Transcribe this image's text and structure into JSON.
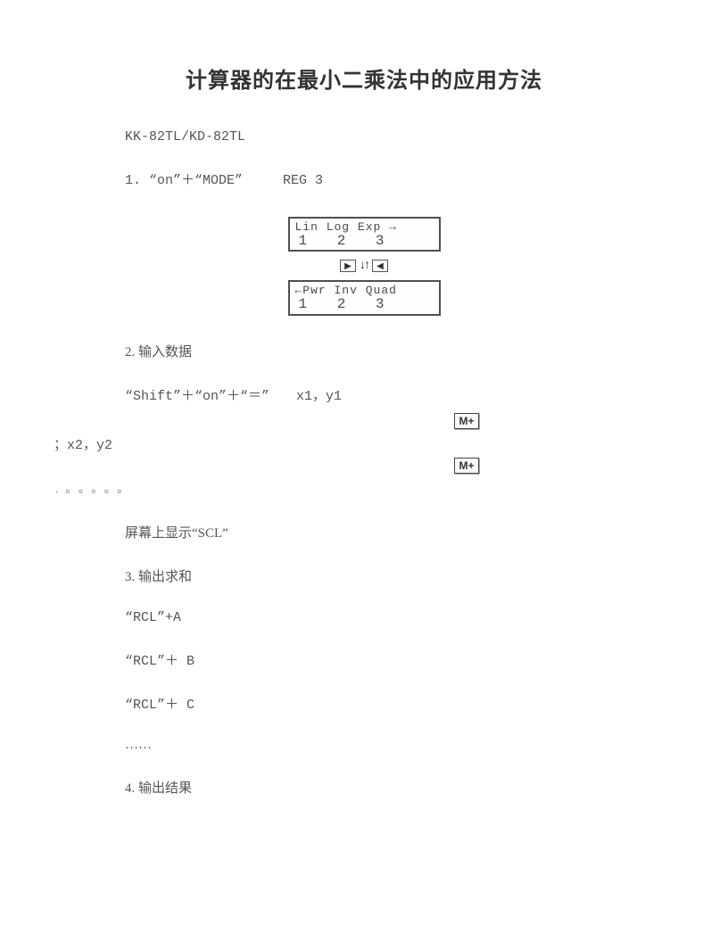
{
  "title": "计算器的在最小二乘法中的应用方法",
  "model": "KK-82TL/KD-82TL",
  "step1": {
    "label": "1. “on”＋“MODE”　　　REG 3",
    "lcd1_top": "Lin Log Exp →",
    "lcd1_bot": "1  2  3",
    "lcd2_top": "←Pwr Inv Quad",
    "lcd2_bot": "1  2  3",
    "arrow_left": "▶",
    "arrow_mid": "↓↑",
    "arrow_right": "◀"
  },
  "step2": {
    "label": "2. 输入数据",
    "shift_line": "“Shift”＋“on”＋“＝”　　x1，y1",
    "key": "M+",
    "line_x2": "；x2，y2",
    "dots": ".。。。。。",
    "scl": "屏幕上显示“SCL”"
  },
  "step3": {
    "label": "3. 输出求和",
    "a": "“RCL”+A",
    "b": "“RCL”＋ B",
    "c": "“RCL”＋ C",
    "dots": "……"
  },
  "step4": {
    "label": "4. 输出结果"
  },
  "colors": {
    "text": "#555555",
    "title": "#333333",
    "border": "#505050",
    "bg": "#ffffff"
  }
}
